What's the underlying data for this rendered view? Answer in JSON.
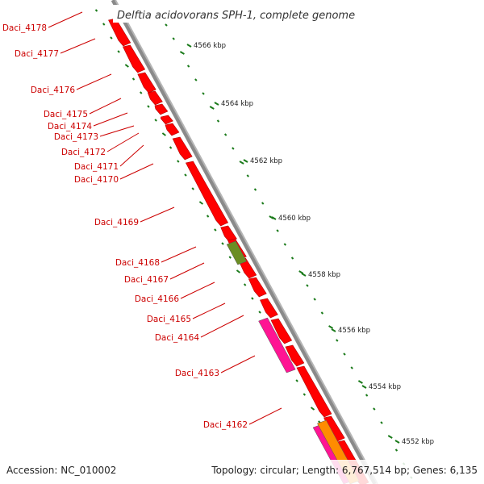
{
  "title": "Delftia acidovorans SPH-1, complete genome",
  "footer": {
    "accession": "Accession: NC_010002",
    "summary": "Topology: circular; Length: 6,767,514 bp; Genes: 6,135"
  },
  "scale_labels": [
    "4566 kbp",
    "4564 kbp",
    "4562 kbp",
    "4560 kbp",
    "4558 kbp",
    "4556 kbp",
    "4554 kbp",
    "4552 kbp"
  ],
  "genes": [
    {
      "name": "Daci_4178",
      "color": "#ff0000"
    },
    {
      "name": "Daci_4177",
      "color": "#ff0000"
    },
    {
      "name": "Daci_4176",
      "color": "#ff0000"
    },
    {
      "name": "Daci_4175",
      "color": "#ff0000"
    },
    {
      "name": "Daci_4174",
      "color": "#ff0000"
    },
    {
      "name": "Daci_4173",
      "color": "#ff0000"
    },
    {
      "name": "Daci_4172",
      "color": "#ff0000"
    },
    {
      "name": "Daci_4171",
      "color": "#ff0000"
    },
    {
      "name": "Daci_4170",
      "color": "#ff0000"
    },
    {
      "name": "Daci_4169",
      "color": "#ff0000"
    },
    {
      "name": "Daci_4168",
      "color": "#6b8e23"
    },
    {
      "name": "Daci_4167",
      "color": "#ff0000"
    },
    {
      "name": "Daci_4166",
      "color": "#ff0000"
    },
    {
      "name": "Daci_4165",
      "color": "#ff0000"
    },
    {
      "name": "Daci_4164",
      "color": "#ff0000"
    },
    {
      "name": "Daci_4163",
      "color": "#ff1493"
    },
    {
      "name": "Daci_4162",
      "color": "#ff0000"
    }
  ],
  "colors": {
    "backbone": "#8a8a8a",
    "gene_default": "#ff0000",
    "gene_label": "#cc0000",
    "tick": "#1a7a1a",
    "extra_magenta": "#ff1493",
    "extra_orange": "#ff8c00"
  }
}
